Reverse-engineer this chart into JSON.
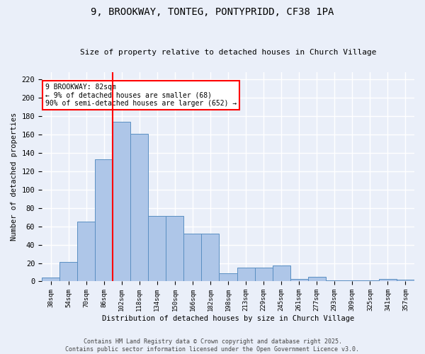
{
  "title_line1": "9, BROOKWAY, TONTEG, PONTYPRIDD, CF38 1PA",
  "title_line2": "Size of property relative to detached houses in Church Village",
  "xlabel": "Distribution of detached houses by size in Church Village",
  "ylabel": "Number of detached properties",
  "bar_labels": [
    "38sqm",
    "54sqm",
    "70sqm",
    "86sqm",
    "102sqm",
    "118sqm",
    "134sqm",
    "150sqm",
    "166sqm",
    "182sqm",
    "198sqm",
    "213sqm",
    "229sqm",
    "245sqm",
    "261sqm",
    "277sqm",
    "293sqm",
    "309sqm",
    "325sqm",
    "341sqm",
    "357sqm"
  ],
  "bar_values": [
    4,
    21,
    65,
    133,
    174,
    161,
    71,
    71,
    52,
    52,
    9,
    15,
    15,
    17,
    3,
    5,
    1,
    1,
    1,
    3,
    2
  ],
  "bar_color": "#aec6e8",
  "bar_edge_color": "#5a8fc2",
  "background_color": "#eaeff9",
  "grid_color": "#ffffff",
  "vline_color": "red",
  "vline_position": 3.5,
  "annotation_text": "9 BROOKWAY: 82sqm\n← 9% of detached houses are smaller (68)\n90% of semi-detached houses are larger (652) →",
  "annotation_box_color": "white",
  "annotation_box_edge_color": "red",
  "ylim_max": 228,
  "yticks": [
    0,
    20,
    40,
    60,
    80,
    100,
    120,
    140,
    160,
    180,
    200,
    220
  ],
  "footer_line1": "Contains HM Land Registry data © Crown copyright and database right 2025.",
  "footer_line2": "Contains public sector information licensed under the Open Government Licence v3.0."
}
